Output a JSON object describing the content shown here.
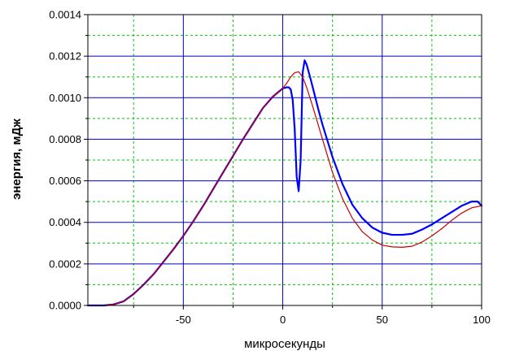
{
  "chart_data": {
    "type": "line",
    "xlabel": "микросекунды",
    "ylabel": "энергия, мДж",
    "xlim": [
      -98,
      100
    ],
    "ylim": [
      0,
      0.0014
    ],
    "x_major_ticks": [
      -50,
      0,
      50,
      100
    ],
    "x_major_tick_labels": [
      "-50",
      "0",
      "50",
      "100"
    ],
    "x_minor_ticks": [
      -75,
      -25,
      25,
      75
    ],
    "y_major_ticks": [
      0,
      0.0002,
      0.0004,
      0.0006,
      0.0008,
      0.001,
      0.0012,
      0.0014
    ],
    "y_major_tick_labels": [
      "0.0000",
      "0.0002",
      "0.0004",
      "0.0006",
      "0.0008",
      "0.0010",
      "0.0012",
      "0.0014"
    ],
    "y_minor_ticks": [
      0.0001,
      0.0003,
      0.0005,
      0.0007,
      0.0009,
      0.0011,
      0.0013
    ],
    "grid": {
      "major": "solid",
      "minor": "dashed"
    },
    "colors": {
      "major_grid": "#0000c8",
      "minor_grid": "#00c800",
      "axes": "#000000"
    },
    "series": [
      {
        "color": "#0000ff",
        "x": [
          -98,
          -90,
          -85,
          -80,
          -75,
          -70,
          -65,
          -60,
          -55,
          -50,
          -45,
          -40,
          -35,
          -30,
          -25,
          -20,
          -15,
          -10,
          -5,
          0,
          2,
          3,
          4,
          5,
          6,
          7,
          8,
          9,
          10,
          11,
          12,
          14,
          16,
          18,
          20,
          25,
          30,
          35,
          40,
          45,
          50,
          55,
          60,
          65,
          70,
          75,
          80,
          85,
          90,
          95,
          97,
          98,
          100
        ],
        "y": [
          0.0,
          0.0,
          5e-06,
          2e-05,
          5.5e-05,
          0.0001,
          0.00015,
          0.00021,
          0.00027,
          0.000335,
          0.000405,
          0.00048,
          0.00056,
          0.00064,
          0.00072,
          0.0008,
          0.000875,
          0.00095,
          0.001005,
          0.001045,
          0.00105,
          0.00105,
          0.00104,
          0.00099,
          0.00085,
          0.00062,
          0.00055,
          0.0007,
          0.00112,
          0.00118,
          0.00116,
          0.00109,
          0.001015,
          0.00094,
          0.00087,
          0.000715,
          0.000585,
          0.000485,
          0.00042,
          0.000375,
          0.00035,
          0.00034,
          0.00034,
          0.000345,
          0.000365,
          0.00039,
          0.00042,
          0.00045,
          0.00048,
          0.0005,
          0.0005,
          0.0005,
          0.00048
        ]
      },
      {
        "color": "#c80000",
        "x": [
          -98,
          -90,
          -85,
          -80,
          -75,
          -70,
          -65,
          -60,
          -55,
          -50,
          -45,
          -40,
          -35,
          -30,
          -25,
          -20,
          -15,
          -10,
          -5,
          0,
          2,
          4,
          6,
          8,
          10,
          12,
          15,
          20,
          25,
          30,
          35,
          40,
          45,
          50,
          55,
          60,
          65,
          70,
          75,
          80,
          85,
          90,
          95,
          100
        ],
        "y": [
          0.0,
          0.0,
          5e-06,
          2e-05,
          5.5e-05,
          0.0001,
          0.00015,
          0.00021,
          0.00027,
          0.000335,
          0.000405,
          0.00048,
          0.00056,
          0.00064,
          0.00072,
          0.0008,
          0.000875,
          0.00095,
          0.001005,
          0.001045,
          0.00107,
          0.0011,
          0.00112,
          0.001125,
          0.0011,
          0.00105,
          0.00096,
          0.0008,
          0.00064,
          0.000515,
          0.00042,
          0.000355,
          0.000315,
          0.00029,
          0.000282,
          0.00028,
          0.000285,
          0.000305,
          0.000335,
          0.00037,
          0.00041,
          0.000445,
          0.00047,
          0.00048
        ]
      }
    ]
  }
}
